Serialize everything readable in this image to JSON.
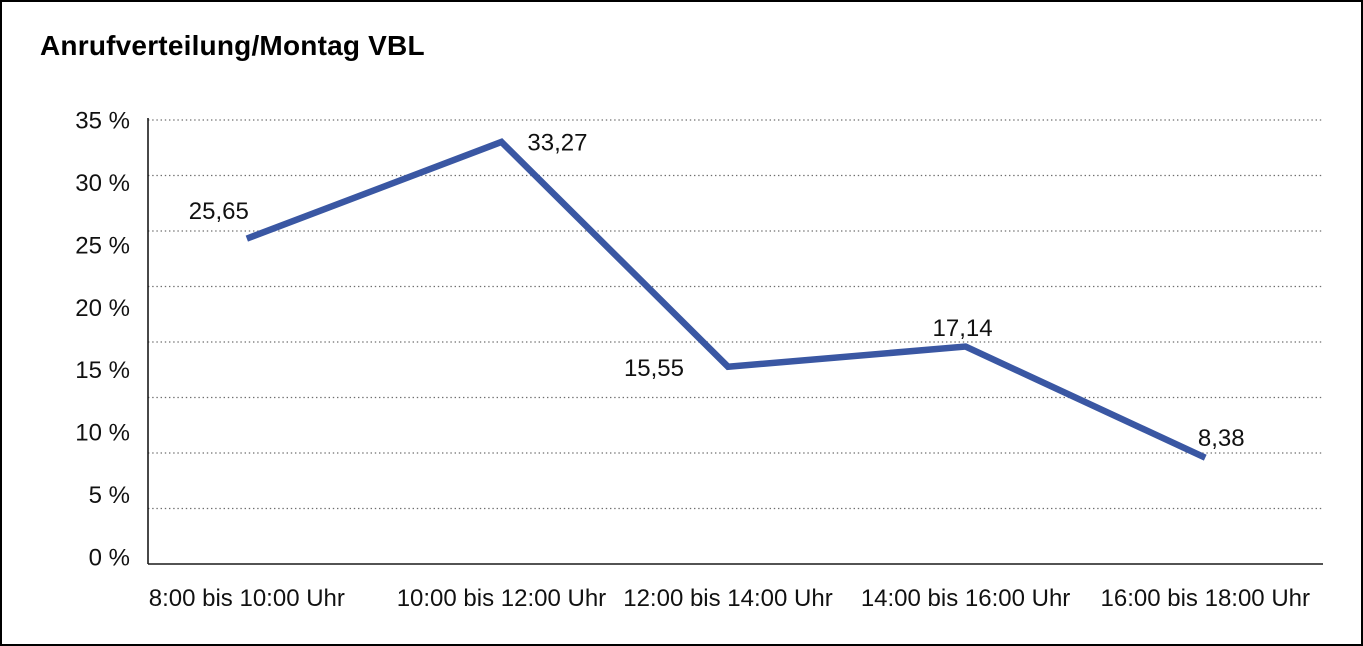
{
  "window": {
    "background_color": "#ffffff",
    "border_color": "#000000"
  },
  "chart_data": {
    "type": "line",
    "title": "Anrufverteilung/Montag VBL",
    "categories": [
      "8:00 bis 10:00 Uhr",
      "10:00 bis 12:00 Uhr",
      "12:00 bis 14:00 Uhr",
      "14:00 bis 16:00 Uhr",
      "16:00 bis 18:00 Uhr"
    ],
    "series": [
      {
        "name": "Anrufverteilung Montag VBL",
        "values": [
          25.65,
          33.27,
          15.55,
          17.14,
          8.38
        ],
        "value_labels": [
          "25,65",
          "33,27",
          "15,55",
          "17,14",
          "8,38"
        ]
      }
    ],
    "xlabel": "",
    "ylabel": "",
    "ylim": [
      0,
      35
    ],
    "y_tick_step": 5,
    "y_tick_labels": [
      "35 %",
      "30 %",
      "25 %",
      "20 %",
      "15 %",
      "10 %",
      "5 %",
      "0 %"
    ],
    "gridline_intervals": 8,
    "grid_style": "dotted-horizontal",
    "legend_position": "none",
    "line_color": "#3A57A3",
    "axis_color": "#1a1a1a",
    "gridline_color": "#6e6e6e",
    "label_color": "#111111"
  }
}
